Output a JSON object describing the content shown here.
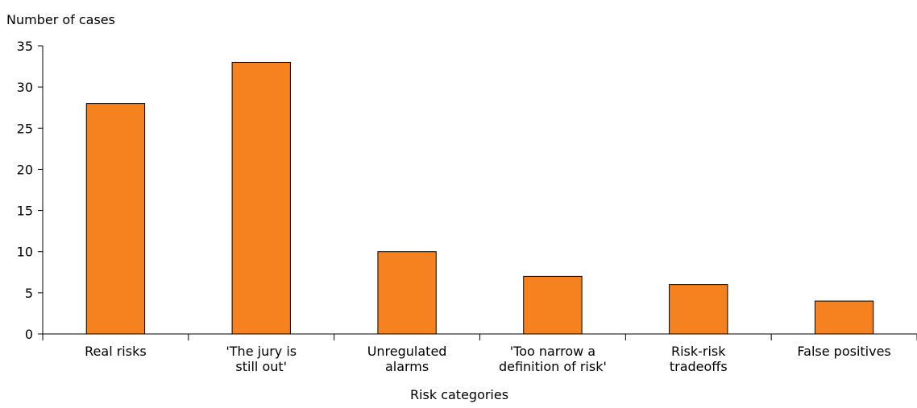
{
  "chart_data": {
    "type": "bar",
    "title": "",
    "ylabel": "Number of cases",
    "xlabel": "Risk categories",
    "ylim": [
      0,
      35
    ],
    "yticks": [
      0,
      5,
      10,
      15,
      20,
      25,
      30,
      35
    ],
    "grid": false,
    "categories": [
      [
        "Real risks"
      ],
      [
        "'The jury is",
        "still out'"
      ],
      [
        "Unregulated",
        "alarms"
      ],
      [
        "'Too narrow a",
        "definition of risk'"
      ],
      [
        "Risk-risk",
        "tradeoffs"
      ],
      [
        "False positives"
      ]
    ],
    "values": [
      28,
      33,
      10,
      7,
      6,
      4
    ],
    "bar_color": "#f5821f",
    "bar_edge_color": "#000000"
  }
}
